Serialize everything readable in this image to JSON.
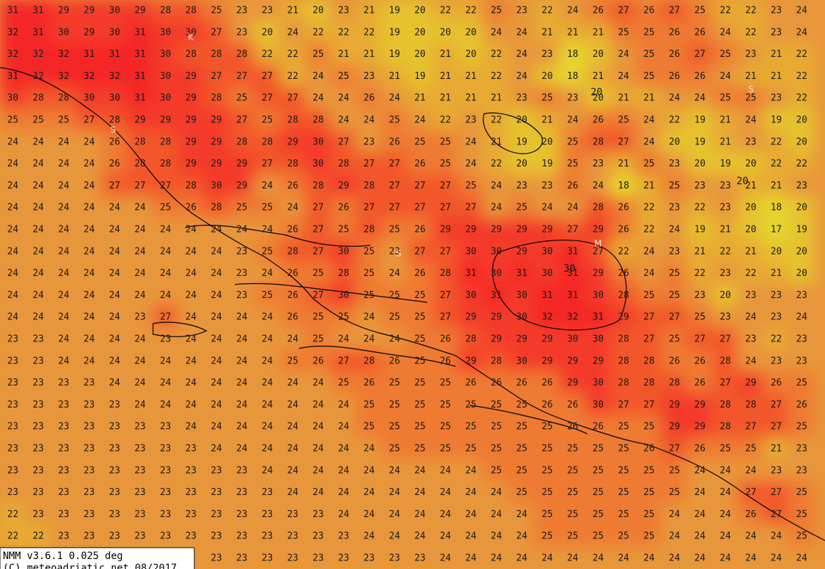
{
  "grid": {
    "rows": [
      [
        31,
        31,
        29,
        29,
        30,
        29,
        28,
        28,
        25,
        23,
        23,
        21,
        20,
        23,
        21,
        19,
        20,
        22,
        22,
        25,
        23,
        22,
        24,
        26,
        27,
        26,
        27,
        25,
        22,
        22,
        23,
        24
      ],
      [
        32,
        31,
        30,
        29,
        30,
        31,
        30,
        30,
        27,
        23,
        20,
        24,
        22,
        22,
        22,
        19,
        20,
        20,
        20,
        24,
        24,
        21,
        21,
        21,
        25,
        25,
        26,
        26,
        24,
        22,
        23,
        24
      ],
      [
        32,
        32,
        32,
        31,
        31,
        31,
        30,
        28,
        28,
        28,
        22,
        22,
        25,
        21,
        21,
        19,
        20,
        21,
        20,
        22,
        24,
        23,
        18,
        20,
        24,
        25,
        26,
        27,
        25,
        23,
        21,
        22
      ],
      [
        31,
        32,
        32,
        32,
        32,
        31,
        30,
        29,
        27,
        27,
        27,
        22,
        24,
        25,
        23,
        21,
        19,
        21,
        21,
        22,
        24,
        20,
        18,
        21,
        24,
        25,
        26,
        26,
        24,
        21,
        21,
        22
      ],
      [
        30,
        28,
        28,
        30,
        30,
        31,
        30,
        29,
        28,
        25,
        27,
        27,
        24,
        24,
        26,
        24,
        21,
        21,
        21,
        21,
        23,
        25,
        23,
        20,
        21,
        21,
        24,
        24,
        25,
        25,
        23,
        22
      ],
      [
        25,
        25,
        25,
        27,
        28,
        29,
        29,
        29,
        29,
        27,
        25,
        28,
        28,
        24,
        24,
        25,
        24,
        22,
        23,
        22,
        20,
        21,
        24,
        26,
        25,
        24,
        22,
        19,
        21,
        24,
        19,
        20
      ],
      [
        24,
        24,
        24,
        24,
        26,
        28,
        28,
        29,
        29,
        28,
        28,
        29,
        30,
        27,
        23,
        26,
        25,
        25,
        24,
        21,
        19,
        20,
        25,
        28,
        27,
        24,
        20,
        19,
        21,
        23,
        22,
        20
      ],
      [
        24,
        24,
        24,
        24,
        26,
        28,
        28,
        29,
        29,
        29,
        27,
        28,
        30,
        28,
        27,
        27,
        26,
        25,
        24,
        22,
        20,
        19,
        25,
        23,
        21,
        25,
        23,
        20,
        19,
        20,
        22,
        22
      ],
      [
        24,
        24,
        24,
        24,
        27,
        27,
        27,
        28,
        30,
        29,
        24,
        26,
        28,
        29,
        28,
        27,
        27,
        27,
        25,
        24,
        23,
        23,
        26,
        24,
        18,
        21,
        25,
        23,
        23,
        21,
        21,
        23
      ],
      [
        24,
        24,
        24,
        24,
        24,
        24,
        25,
        26,
        28,
        25,
        25,
        24,
        27,
        26,
        27,
        27,
        27,
        27,
        27,
        24,
        25,
        24,
        24,
        28,
        26,
        22,
        23,
        22,
        23,
        20,
        18,
        20
      ],
      [
        24,
        24,
        24,
        24,
        24,
        24,
        24,
        24,
        24,
        24,
        24,
        26,
        27,
        25,
        28,
        25,
        26,
        29,
        29,
        29,
        29,
        29,
        27,
        29,
        26,
        22,
        24,
        19,
        21,
        20,
        17,
        19
      ],
      [
        24,
        24,
        24,
        24,
        24,
        24,
        24,
        24,
        24,
        23,
        25,
        28,
        27,
        30,
        25,
        23,
        27,
        27,
        30,
        30,
        29,
        30,
        31,
        27,
        22,
        24,
        23,
        21,
        22,
        21,
        20,
        20
      ],
      [
        24,
        24,
        24,
        24,
        24,
        24,
        24,
        24,
        24,
        23,
        24,
        26,
        25,
        28,
        25,
        24,
        26,
        28,
        31,
        30,
        31,
        30,
        31,
        29,
        26,
        24,
        25,
        22,
        23,
        22,
        21,
        20
      ],
      [
        24,
        24,
        24,
        24,
        24,
        24,
        24,
        24,
        24,
        23,
        25,
        26,
        27,
        30,
        25,
        25,
        25,
        27,
        30,
        31,
        30,
        31,
        31,
        30,
        28,
        25,
        25,
        23,
        20,
        23,
        23,
        23
      ],
      [
        24,
        24,
        24,
        24,
        24,
        23,
        27,
        24,
        24,
        24,
        24,
        26,
        25,
        25,
        24,
        25,
        25,
        27,
        29,
        29,
        30,
        32,
        32,
        31,
        29,
        27,
        27,
        25,
        23,
        24,
        23,
        24
      ],
      [
        23,
        23,
        24,
        24,
        24,
        24,
        23,
        24,
        24,
        24,
        24,
        24,
        25,
        24,
        24,
        24,
        25,
        26,
        28,
        29,
        29,
        29,
        30,
        30,
        28,
        27,
        25,
        27,
        27,
        23,
        22,
        23
      ],
      [
        23,
        23,
        24,
        24,
        24,
        24,
        24,
        24,
        24,
        24,
        24,
        25,
        26,
        27,
        28,
        26,
        25,
        26,
        29,
        28,
        30,
        29,
        29,
        29,
        28,
        28,
        26,
        26,
        28,
        24,
        23,
        23
      ],
      [
        23,
        23,
        23,
        23,
        24,
        24,
        24,
        24,
        24,
        24,
        24,
        24,
        24,
        25,
        26,
        25,
        25,
        25,
        26,
        26,
        26,
        26,
        29,
        30,
        28,
        28,
        28,
        26,
        27,
        29,
        26,
        25
      ],
      [
        23,
        23,
        23,
        23,
        23,
        24,
        24,
        24,
        24,
        24,
        24,
        24,
        24,
        24,
        25,
        25,
        25,
        25,
        25,
        25,
        25,
        26,
        26,
        30,
        27,
        27,
        29,
        29,
        28,
        28,
        27,
        26
      ],
      [
        23,
        23,
        23,
        23,
        23,
        23,
        23,
        24,
        24,
        24,
        24,
        24,
        24,
        24,
        25,
        25,
        25,
        25,
        25,
        25,
        25,
        25,
        26,
        26,
        25,
        25,
        29,
        29,
        28,
        27,
        27,
        25
      ],
      [
        23,
        23,
        23,
        23,
        23,
        23,
        23,
        23,
        24,
        24,
        24,
        24,
        24,
        24,
        24,
        25,
        25,
        25,
        25,
        25,
        25,
        25,
        25,
        25,
        25,
        26,
        27,
        26,
        25,
        25,
        21,
        23
      ],
      [
        23,
        23,
        23,
        23,
        23,
        23,
        23,
        23,
        23,
        23,
        24,
        24,
        24,
        24,
        24,
        24,
        24,
        24,
        24,
        25,
        25,
        25,
        25,
        25,
        25,
        25,
        25,
        24,
        24,
        24,
        23,
        23
      ],
      [
        23,
        23,
        23,
        23,
        23,
        23,
        23,
        23,
        23,
        23,
        23,
        24,
        24,
        24,
        24,
        24,
        24,
        24,
        24,
        24,
        25,
        25,
        25,
        25,
        25,
        25,
        25,
        24,
        24,
        27,
        27,
        25
      ],
      [
        22,
        23,
        23,
        23,
        23,
        23,
        23,
        23,
        23,
        23,
        23,
        23,
        23,
        24,
        24,
        24,
        24,
        24,
        24,
        24,
        24,
        25,
        25,
        25,
        25,
        25,
        24,
        24,
        24,
        26,
        27,
        25
      ],
      [
        22,
        22,
        23,
        23,
        23,
        23,
        23,
        23,
        23,
        23,
        23,
        23,
        23,
        23,
        24,
        24,
        24,
        24,
        24,
        24,
        24,
        25,
        25,
        25,
        25,
        25,
        24,
        24,
        24,
        24,
        24,
        25
      ],
      [
        null,
        null,
        null,
        null,
        null,
        null,
        null,
        null,
        23,
        23,
        23,
        23,
        23,
        23,
        23,
        23,
        23,
        24,
        24,
        24,
        24,
        24,
        24,
        24,
        24,
        24,
        24,
        24,
        24,
        24,
        24,
        24
      ]
    ]
  },
  "map_labels": [
    "K",
    "S",
    "S",
    "M",
    "S"
  ],
  "contour_labels": [
    "20",
    "20",
    "30"
  ],
  "info": {
    "model": "NMM v3.6.1 0.025 deg",
    "credit": "(C) meteoadriatic.net 08/2017"
  }
}
